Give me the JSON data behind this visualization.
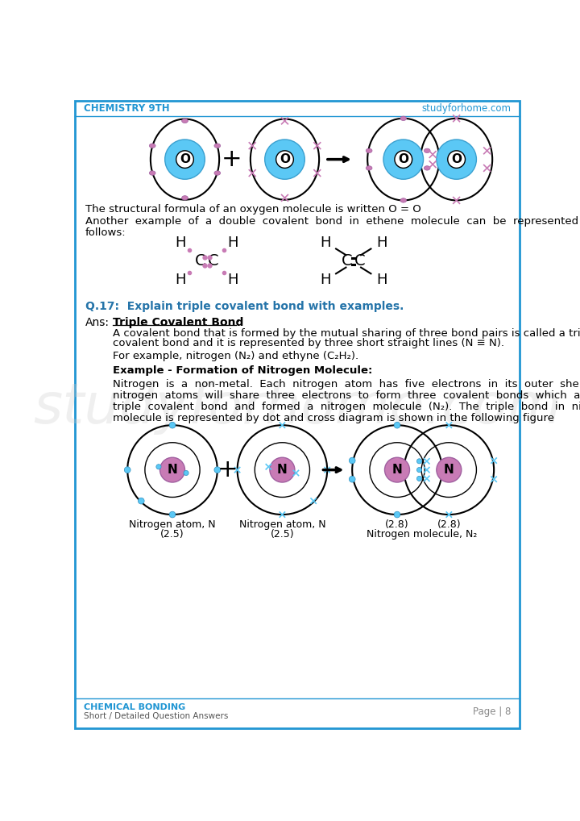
{
  "header_left": "CHEMISTRY 9TH",
  "header_right": "studyforhome.com",
  "header_color": "#2196d3",
  "border_color": "#2196d3",
  "footer_left_bold": "CHEMICAL BONDING",
  "footer_left_sub": "Short / Detailed Question Answers",
  "footer_right": "Page | 8",
  "watermark": "studyforhome.com",
  "bg_color": "#ffffff",
  "text_color": "#000000",
  "question_color": "#2574a9",
  "para1": "The structural formula of an oxygen molecule is written O = O",
  "q17": "Q.17:  Explain triple covalent bond with examples.",
  "ans_p2": "For example, nitrogen (N₂) and ethyne (C₂H₂).",
  "ex_bold": "Example - Formation of Nitrogen Molecule:",
  "oxygen_color": "#5bc8f5",
  "nitrogen_color": "#c87bb5",
  "dot_color_o": "#c87bb5",
  "dot_color_n": "#5bc8f5",
  "cross_color": "#c87bb5",
  "cross_color_n": "#5bc8f5"
}
